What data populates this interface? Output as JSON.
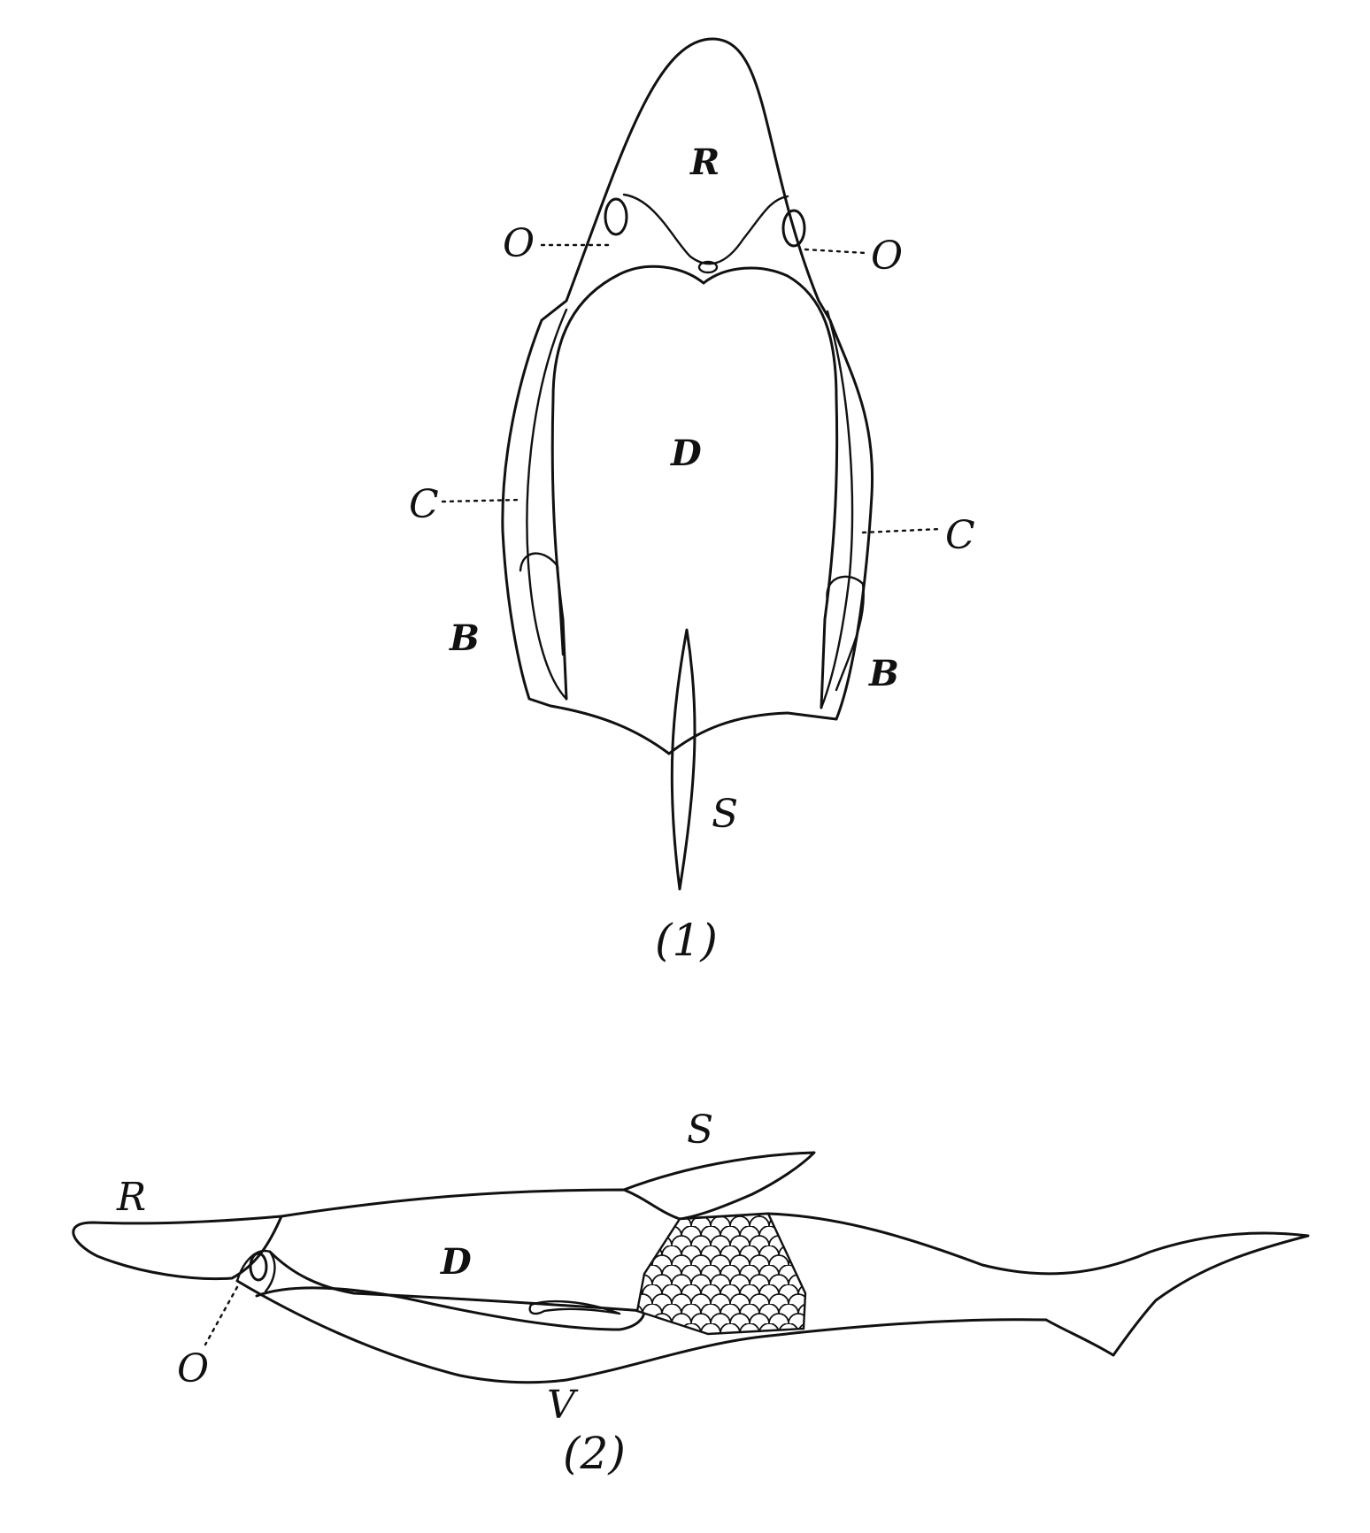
{
  "figure1": {
    "labels": {
      "R": "R",
      "O_left": "O",
      "O_right": "O",
      "D": "D",
      "C_left": "C",
      "C_right": "C",
      "B_left": "B",
      "B_right": "B",
      "S": "S"
    },
    "caption": "(1)"
  },
  "figure2": {
    "labels": {
      "R": "R",
      "S": "S",
      "D": "D",
      "O": "O",
      "V": "V"
    },
    "caption": "(2)"
  },
  "colors": {
    "ink": "#111111",
    "paper": "#ffffff"
  }
}
